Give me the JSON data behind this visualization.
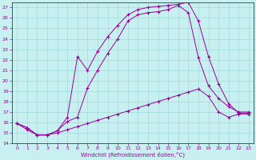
{
  "xlabel": "Windchill (Refroidissement éolien,°C)",
  "xlim": [
    -0.5,
    23.5
  ],
  "ylim": [
    14,
    27.5
  ],
  "yticks": [
    14,
    15,
    16,
    17,
    18,
    19,
    20,
    21,
    22,
    23,
    24,
    25,
    26,
    27
  ],
  "xticks": [
    0,
    1,
    2,
    3,
    4,
    5,
    6,
    7,
    8,
    9,
    10,
    11,
    12,
    13,
    14,
    15,
    16,
    17,
    18,
    19,
    20,
    21,
    22,
    23
  ],
  "bg_color": "#c8f0f0",
  "grid_color": "#a0d8d8",
  "line_color": "#990099",
  "lines": [
    {
      "x": [
        0,
        1,
        2,
        3,
        4,
        5,
        6,
        7,
        8,
        9,
        10,
        11,
        12,
        13,
        14,
        15,
        16,
        17,
        18,
        19,
        20,
        21,
        22,
        23
      ],
      "y": [
        15.9,
        15.5,
        14.8,
        14.8,
        15.0,
        15.3,
        15.6,
        15.9,
        16.2,
        16.5,
        16.8,
        17.1,
        17.4,
        17.7,
        18.0,
        18.3,
        18.6,
        18.9,
        19.2,
        18.5,
        17.0,
        16.5,
        16.8,
        16.8
      ]
    },
    {
      "x": [
        0,
        1,
        2,
        3,
        4,
        5,
        6,
        7,
        8,
        9,
        10,
        11,
        12,
        13,
        14,
        15,
        16,
        17,
        18,
        19,
        20,
        21,
        22,
        23
      ],
      "y": [
        15.9,
        15.3,
        14.8,
        14.8,
        15.2,
        16.1,
        16.5,
        19.3,
        21.0,
        22.6,
        24.0,
        25.7,
        26.3,
        26.5,
        26.6,
        26.8,
        27.2,
        26.5,
        22.2,
        19.5,
        18.3,
        17.5,
        17.0,
        17.0
      ]
    },
    {
      "x": [
        0,
        1,
        2,
        3,
        4,
        5,
        6,
        7,
        8,
        9,
        10,
        11,
        12,
        13,
        14,
        15,
        16,
        17,
        18,
        19,
        20,
        21,
        22,
        23
      ],
      "y": [
        15.9,
        15.5,
        14.8,
        14.8,
        15.2,
        16.5,
        22.3,
        21.0,
        22.8,
        24.2,
        25.3,
        26.3,
        26.8,
        27.0,
        27.1,
        27.2,
        27.3,
        27.5,
        25.7,
        22.3,
        19.7,
        17.8,
        16.9,
        16.9
      ]
    }
  ]
}
